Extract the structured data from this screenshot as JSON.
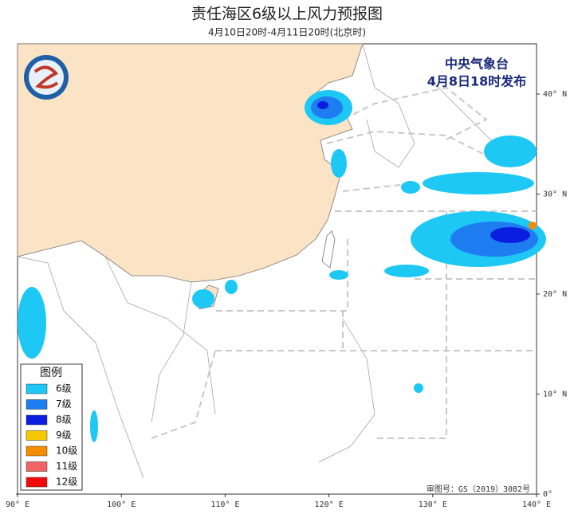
{
  "header": {
    "title": "责任海区6级以上风力预报图",
    "subtitle": "4月10日20时-4月11日20时(北京时)"
  },
  "agency": {
    "name": "中央气象台",
    "issued": "4月8日18时发布"
  },
  "legend": {
    "title": "图例",
    "items": [
      {
        "label": "6级",
        "color": "#1ec8f5"
      },
      {
        "label": "7级",
        "color": "#1e7df0"
      },
      {
        "label": "8级",
        "color": "#0a1ee0"
      },
      {
        "label": "9级",
        "color": "#f5c800"
      },
      {
        "label": "10级",
        "color": "#f58c00"
      },
      {
        "label": "11级",
        "color": "#f06464"
      },
      {
        "label": "12级",
        "color": "#f00a0a"
      }
    ]
  },
  "map": {
    "lon_ticks": [
      {
        "value": 90,
        "label": "90° E"
      },
      {
        "value": 100,
        "label": "100° E"
      },
      {
        "value": 110,
        "label": "110° E"
      },
      {
        "value": 120,
        "label": "120° E"
      },
      {
        "value": 130,
        "label": "130° E"
      },
      {
        "value": 140,
        "label": "140° E"
      }
    ],
    "lat_ticks": [
      {
        "value": 0,
        "label": "0°"
      },
      {
        "value": 10,
        "label": "10° N"
      },
      {
        "value": 20,
        "label": "20° N"
      },
      {
        "value": 30,
        "label": "30° N"
      },
      {
        "value": 40,
        "label": "40° N"
      }
    ]
  },
  "footer": {
    "approval": "审图号：GS（2019）3082号"
  }
}
